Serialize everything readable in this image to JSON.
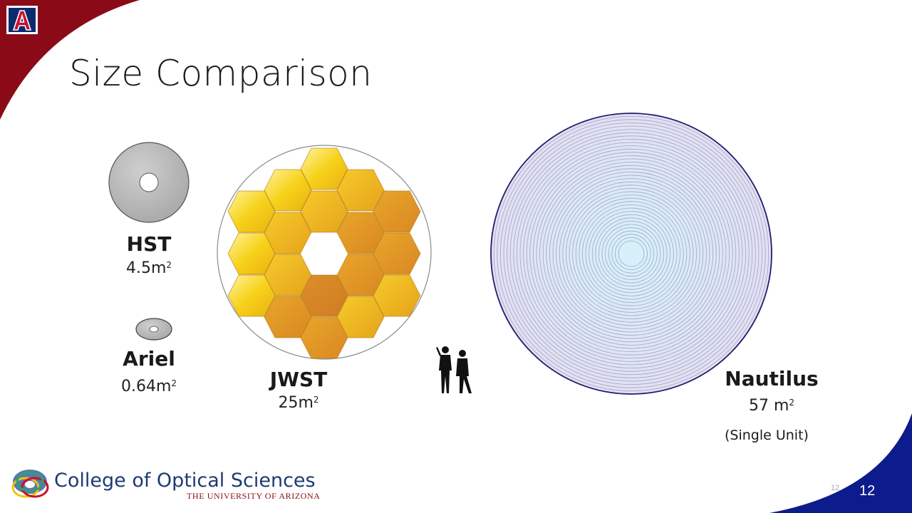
{
  "slide": {
    "title": "Size Comparison",
    "page_number": "12",
    "page_number_ghost": "12"
  },
  "telescopes": {
    "hst": {
      "name": "HST",
      "area": "4.5m",
      "unit_exp": "2"
    },
    "ariel": {
      "name": "Ariel",
      "area": "0.64m",
      "unit_exp": "2"
    },
    "jwst": {
      "name": "JWST",
      "area": "25m",
      "unit_exp": "2"
    },
    "nautilus": {
      "name": "Nautilus",
      "area": "57 m",
      "unit_exp": "2",
      "note": "(Single Unit)"
    }
  },
  "footer": {
    "college": "College of Optical Sciences",
    "university": "THE UNIVERSITY OF ARIZONA"
  },
  "logo": {
    "letter": "A"
  },
  "colors": {
    "arizona_red": "#8b0a18",
    "arizona_navy": "#0c1c8c",
    "nautilus_fill": "#dde4f6",
    "nautilus_ring": "#2a2a7a",
    "jwst_gold": "#f0b020"
  }
}
